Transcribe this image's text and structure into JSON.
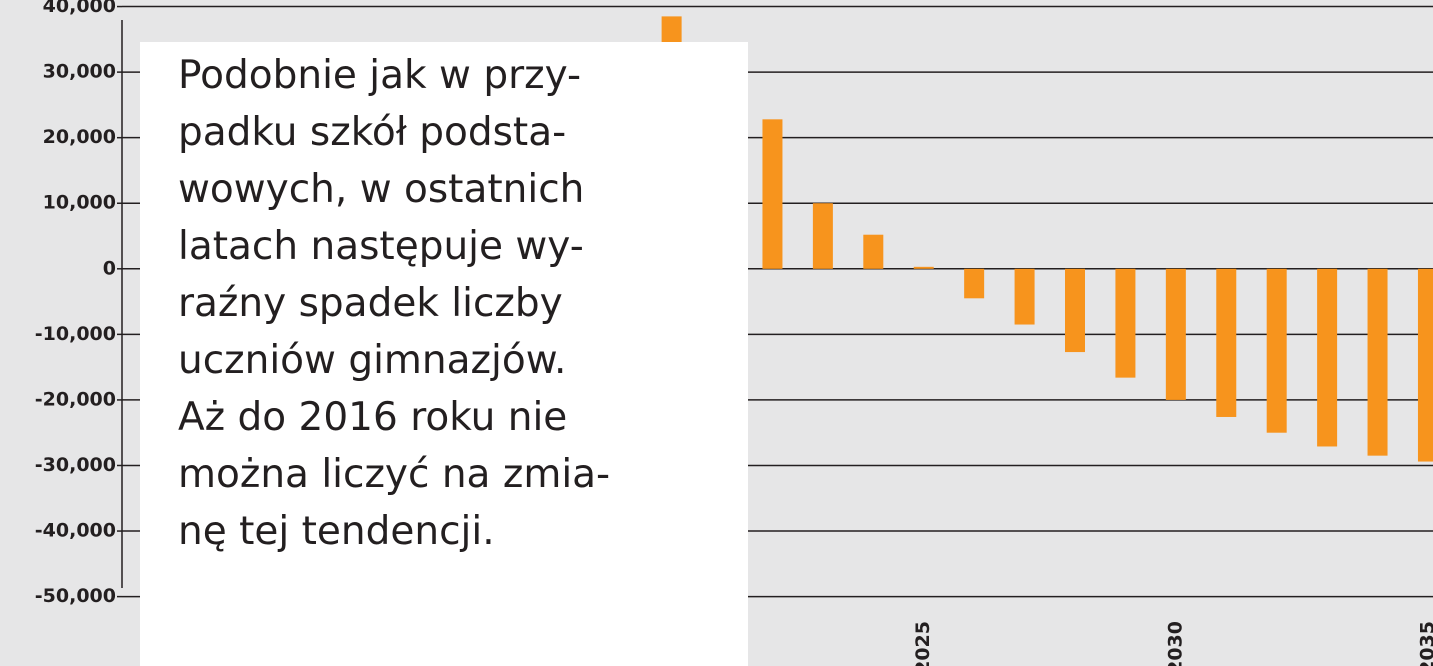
{
  "chart_data": {
    "type": "bar",
    "x": [
      2020,
      2022,
      2023,
      2024,
      2025,
      2026,
      2027,
      2028,
      2029,
      2030,
      2031,
      2032,
      2033,
      2034,
      2035
    ],
    "values": [
      38500,
      22800,
      10000,
      5200,
      300,
      -4500,
      -8500,
      -12700,
      -16600,
      -20000,
      -22600,
      -25000,
      -27100,
      -28500,
      -29400
    ],
    "color": "#f7941d",
    "xlim": [
      2009.1,
      2035.1
    ],
    "xticks": [
      2025,
      2030,
      2035
    ],
    "ylim": [
      -52500,
      41000
    ],
    "yticks": [
      {
        "value": 40000,
        "label": "40,000"
      },
      {
        "value": 30000,
        "label": "30,000"
      },
      {
        "value": 20000,
        "label": "20,000"
      },
      {
        "value": 10000,
        "label": "10,000"
      },
      0,
      {
        "value": -10000,
        "label": "-10,000"
      },
      {
        "value": -20000,
        "label": "-20,000"
      },
      {
        "value": -30000,
        "label": "-30,000"
      },
      {
        "value": -40000,
        "label": "-40,000"
      },
      {
        "value": -50000,
        "label": "-50,000"
      }
    ],
    "grid": true,
    "annotation": [
      "Podobnie jak w przy-",
      "padku szkół podsta-",
      "wowych, w ostatnich",
      "latach następuje wy-",
      "raźny spadek liczby",
      "uczniów gimnazjów.",
      "Aż do 2016 roku nie",
      "można liczyć na zmia-",
      "nę tej tendencji."
    ]
  }
}
